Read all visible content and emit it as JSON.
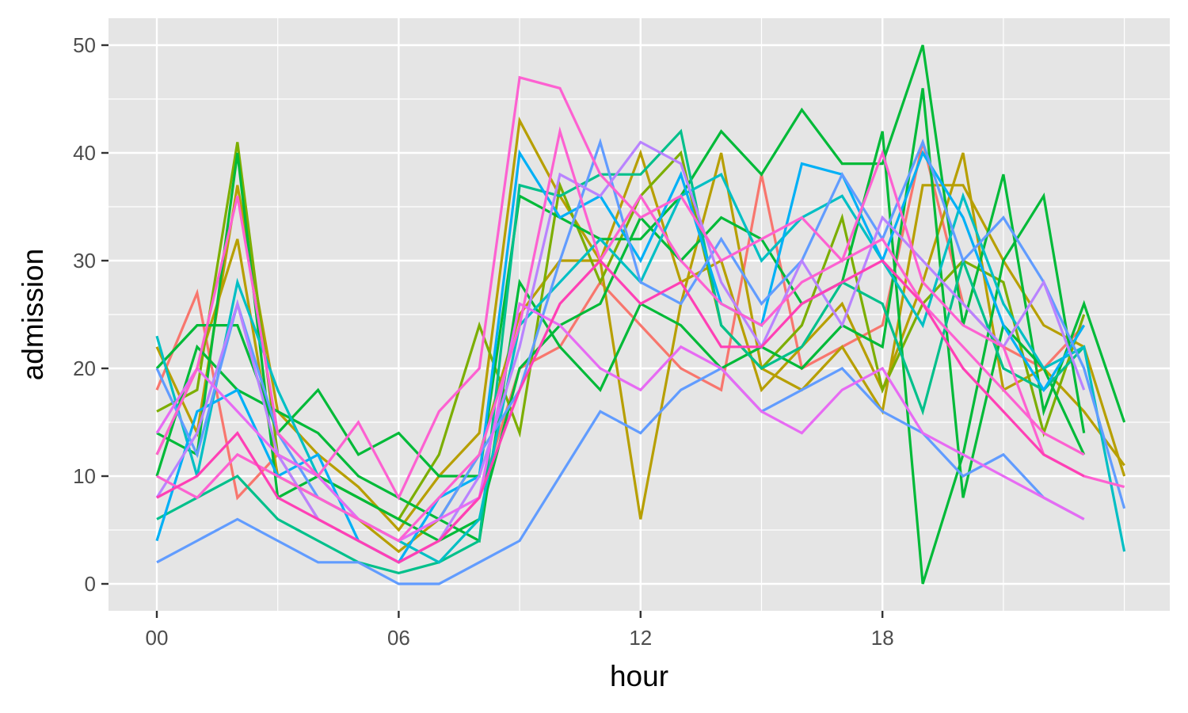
{
  "chart_data": {
    "type": "line",
    "title": "",
    "xlabel": "hour",
    "ylabel": "admission",
    "x_categories": [
      "00",
      "01",
      "02",
      "03",
      "04",
      "05",
      "06",
      "07",
      "08",
      "09",
      "10",
      "11",
      "12",
      "13",
      "14",
      "15",
      "16",
      "17",
      "18",
      "19",
      "20",
      "21",
      "22",
      "23",
      "24"
    ],
    "x_tick_labels": [
      "00",
      "06",
      "12",
      "18"
    ],
    "y_ticks": [
      0,
      10,
      20,
      30,
      40,
      50
    ],
    "y_tick_labels": [
      "0",
      "10",
      "20",
      "30",
      "40",
      "50"
    ],
    "ylim": [
      -2.5,
      52.5
    ],
    "grid": true,
    "legend": "none",
    "panel_background": "#e5e5e5",
    "grid_color": "#ffffff",
    "series": [
      {
        "color": "#F8766D",
        "values": [
          18,
          27,
          8,
          12,
          6,
          4,
          2,
          4,
          8,
          20,
          22,
          28,
          24,
          20,
          18,
          38,
          20,
          22,
          24,
          41,
          26,
          22,
          20,
          24,
          null
        ]
      },
      {
        "color": "#B79F00",
        "values": [
          22,
          14,
          37,
          16,
          12,
          9,
          5,
          10,
          14,
          43,
          36,
          30,
          6,
          26,
          40,
          20,
          18,
          22,
          16,
          37,
          37,
          30,
          24,
          22,
          10
        ]
      },
      {
        "color": "#B79F00",
        "values": [
          12,
          20,
          32,
          10,
          8,
          6,
          3,
          6,
          12,
          25,
          30,
          30,
          40,
          28,
          30,
          18,
          22,
          26,
          18,
          28,
          40,
          18,
          20,
          16,
          11
        ]
      },
      {
        "color": "#7CAE00",
        "values": [
          16,
          18,
          41,
          12,
          10,
          8,
          6,
          12,
          24,
          14,
          37,
          28,
          36,
          40,
          24,
          20,
          24,
          34,
          18,
          26,
          30,
          28,
          14,
          25,
          null
        ]
      },
      {
        "color": "#00BA38",
        "values": [
          20,
          24,
          24,
          14,
          18,
          12,
          14,
          10,
          10,
          36,
          34,
          32,
          32,
          36,
          42,
          38,
          44,
          39,
          39,
          50,
          24,
          38,
          16,
          26,
          15
        ]
      },
      {
        "color": "#00BA38",
        "values": [
          14,
          12,
          40,
          8,
          10,
          8,
          6,
          4,
          6,
          20,
          24,
          26,
          34,
          30,
          34,
          32,
          26,
          28,
          42,
          0,
          12,
          30,
          36,
          14,
          null
        ]
      },
      {
        "color": "#00BA38",
        "values": [
          10,
          22,
          18,
          16,
          14,
          10,
          8,
          6,
          4,
          28,
          22,
          18,
          26,
          24,
          20,
          22,
          20,
          24,
          22,
          46,
          8,
          24,
          20,
          12,
          null
        ]
      },
      {
        "color": "#00C08B",
        "values": [
          6,
          8,
          10,
          6,
          4,
          2,
          1,
          2,
          4,
          37,
          36,
          38,
          38,
          42,
          24,
          20,
          22,
          28,
          26,
          16,
          30,
          20,
          18,
          22,
          null
        ]
      },
      {
        "color": "#00BFC4",
        "values": [
          23,
          10,
          28,
          18,
          10,
          6,
          4,
          2,
          6,
          24,
          28,
          32,
          28,
          36,
          38,
          30,
          34,
          36,
          30,
          24,
          36,
          26,
          20,
          22,
          3
        ]
      },
      {
        "color": "#00B0F6",
        "values": [
          4,
          16,
          18,
          10,
          12,
          4,
          2,
          8,
          10,
          40,
          34,
          36,
          30,
          38,
          26,
          24,
          39,
          38,
          30,
          40,
          34,
          24,
          18,
          24,
          null
        ]
      },
      {
        "color": "#619CFF",
        "values": [
          20,
          12,
          26,
          14,
          8,
          6,
          4,
          6,
          12,
          18,
          30,
          41,
          28,
          26,
          32,
          26,
          30,
          38,
          32,
          41,
          30,
          34,
          28,
          20,
          7
        ]
      },
      {
        "color": "#619CFF",
        "values": [
          2,
          4,
          6,
          4,
          2,
          2,
          0,
          0,
          2,
          4,
          10,
          16,
          14,
          18,
          20,
          16,
          18,
          20,
          16,
          14,
          10,
          12,
          8,
          6,
          null
        ]
      },
      {
        "color": "#B983FF",
        "values": [
          8,
          14,
          26,
          12,
          6,
          4,
          2,
          4,
          10,
          22,
          38,
          36,
          41,
          39,
          28,
          22,
          30,
          24,
          34,
          30,
          26,
          22,
          28,
          18,
          null
        ]
      },
      {
        "color": "#E76BF3",
        "values": [
          14,
          20,
          16,
          12,
          10,
          6,
          4,
          6,
          8,
          26,
          24,
          20,
          18,
          22,
          20,
          16,
          14,
          18,
          20,
          14,
          12,
          10,
          8,
          6,
          null
        ]
      },
      {
        "color": "#FD61D1",
        "values": [
          12,
          20,
          36,
          14,
          10,
          15,
          8,
          16,
          20,
          47,
          46,
          38,
          34,
          36,
          30,
          32,
          34,
          30,
          40,
          28,
          24,
          22,
          12,
          10,
          9
        ]
      },
      {
        "color": "#FD61D1",
        "values": [
          10,
          8,
          12,
          10,
          8,
          6,
          4,
          8,
          12,
          24,
          42,
          30,
          36,
          30,
          26,
          24,
          28,
          30,
          32,
          26,
          22,
          18,
          14,
          12,
          null
        ]
      },
      {
        "color": "#FF40B5",
        "values": [
          8,
          10,
          14,
          8,
          6,
          4,
          2,
          4,
          8,
          18,
          26,
          30,
          26,
          28,
          22,
          22,
          26,
          28,
          30,
          26,
          20,
          16,
          12,
          10,
          null
        ]
      }
    ]
  }
}
